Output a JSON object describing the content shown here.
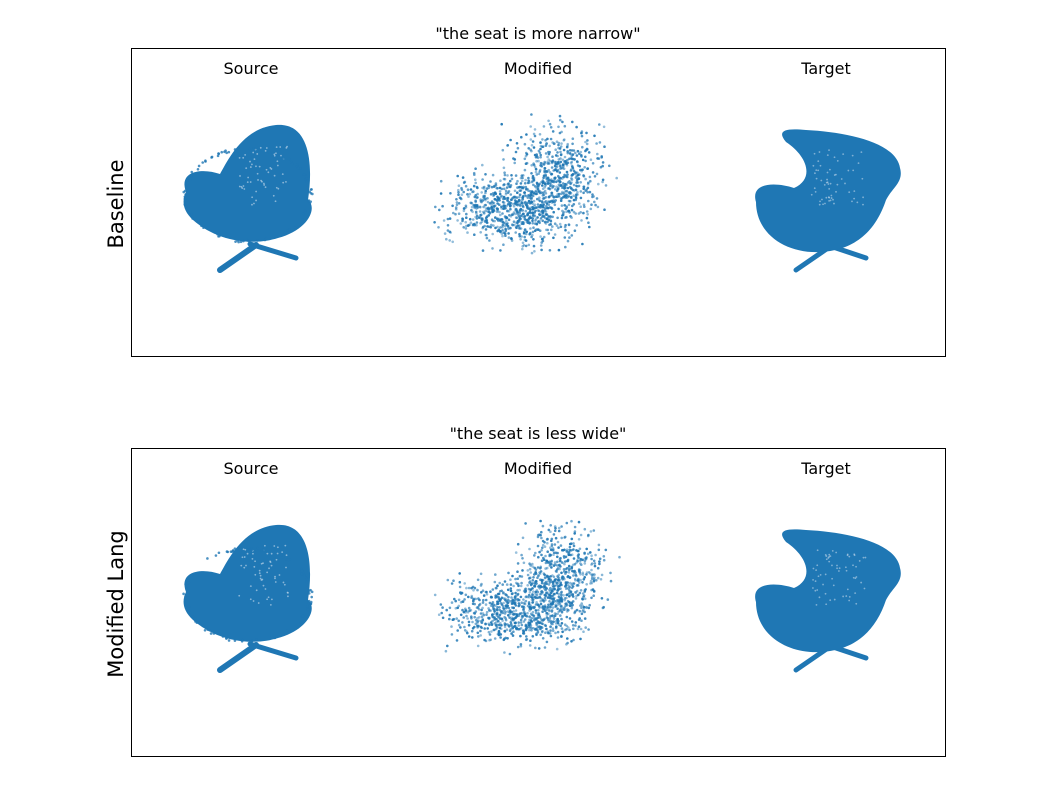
{
  "colors": {
    "points": "#1f77b4",
    "frame": "#000000"
  },
  "column_labels": [
    "Source",
    "Modified",
    "Target"
  ],
  "panels": [
    {
      "title": "\"the seat is more narrow\"",
      "row_label": "Baseline"
    },
    {
      "title": "\"the seat is less wide\"",
      "row_label": "Modified Lang"
    }
  ]
}
